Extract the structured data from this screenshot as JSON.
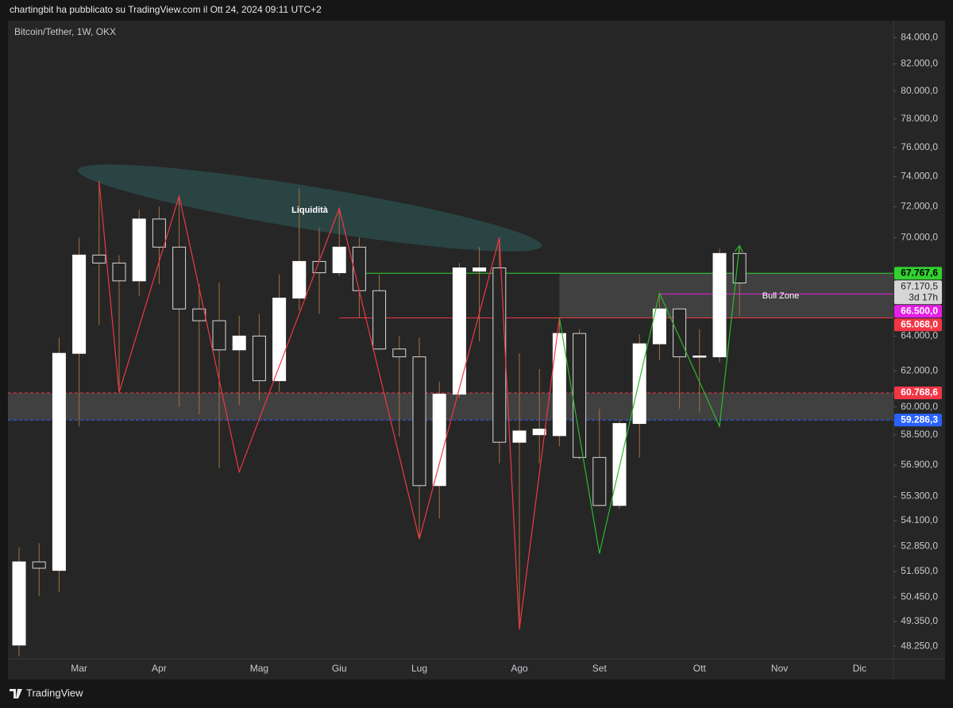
{
  "header": "chartingbit ha pubblicato su TradingView.com il Ott 24, 2024 09:11 UTC+2",
  "footer": "TradingView",
  "chart_data": {
    "type": "candlestick",
    "title": "Bitcoin/Tether, 1W, OKX",
    "categories": [
      null,
      null,
      null,
      "Mar",
      null,
      null,
      null,
      "Apr",
      null,
      null,
      null,
      null,
      "Mag",
      null,
      null,
      null,
      "Giu",
      null,
      null,
      null,
      "Lug",
      null,
      null,
      null,
      null,
      "Ago",
      null,
      null,
      null,
      "Set",
      null,
      null,
      null,
      null,
      "Ott",
      null,
      null,
      null,
      "Nov",
      null,
      null,
      null,
      "Dic"
    ],
    "open": [
      48300,
      52100,
      51700,
      63000,
      68900,
      68400,
      67300,
      71200,
      69400,
      65600,
      64900,
      63200,
      64000,
      61450,
      66250,
      68500,
      67800,
      69400,
      66700,
      63250,
      62800,
      55850,
      60700,
      67900,
      68100,
      58100,
      58500,
      58450,
      64150,
      57300,
      54850,
      59100,
      63550,
      65600,
      62800,
      62800,
      69000,
      null,
      null,
      null,
      null,
      null,
      null
    ],
    "high": [
      52800,
      53000,
      63900,
      70000,
      73700,
      68900,
      71800,
      72000,
      72700,
      67100,
      67200,
      65200,
      65300,
      67700,
      73200,
      70600,
      71900,
      70000,
      67700,
      64000,
      63900,
      61400,
      68400,
      69400,
      70000,
      63000,
      62100,
      65100,
      64400,
      59900,
      59300,
      64100,
      66550,
      65600,
      64400,
      69300,
      69500,
      null,
      null,
      null,
      null,
      null,
      null
    ],
    "low": [
      47800,
      50500,
      50700,
      58950,
      64650,
      60800,
      66400,
      67100,
      60000,
      59600,
      56750,
      60100,
      60350,
      60800,
      65500,
      65300,
      67600,
      65100,
      63200,
      58400,
      53200,
      54200,
      60500,
      63700,
      57000,
      49000,
      57000,
      57900,
      57200,
      54800,
      54700,
      57300,
      62600,
      59900,
      59700,
      62500,
      65200,
      null,
      null,
      null,
      null,
      null,
      null
    ],
    "close": [
      52100,
      51800,
      63000,
      68900,
      68400,
      67300,
      71200,
      69400,
      65600,
      64900,
      63200,
      64000,
      61450,
      66250,
      68500,
      67800,
      69400,
      66700,
      63250,
      62800,
      55850,
      60700,
      68100,
      68100,
      58100,
      58700,
      58800,
      64150,
      57300,
      54850,
      59100,
      63550,
      65600,
      62800,
      62850,
      69000,
      67170.5,
      null,
      null,
      null,
      null,
      null,
      null
    ],
    "bull_color": "#ffffff",
    "bear_color": "#262626",
    "outline_color": "#d8d8d8",
    "wick_color": "#a8703f",
    "log_scale": true,
    "ylim": [
      47700,
      85300
    ],
    "yticks": [
      {
        "value": 84000,
        "label": "84.000,0"
      },
      {
        "value": 82000,
        "label": "82.000,0"
      },
      {
        "value": 80000,
        "label": "80.000,0"
      },
      {
        "value": 78000,
        "label": "78.000,0"
      },
      {
        "value": 76000,
        "label": "76.000,0"
      },
      {
        "value": 74000,
        "label": "74.000,0"
      },
      {
        "value": 72000,
        "label": "72.000,0"
      },
      {
        "value": 70000,
        "label": "70.000,0"
      },
      {
        "value": 64000,
        "label": "64.000,0"
      },
      {
        "value": 62000,
        "label": "62.000,0"
      },
      {
        "value": 60000,
        "label": "60.000,0"
      },
      {
        "value": 58500,
        "label": "58.500,0"
      },
      {
        "value": 56900,
        "label": "56.900,0"
      },
      {
        "value": 55300,
        "label": "55.300,0"
      },
      {
        "value": 54100,
        "label": "54.100,0"
      },
      {
        "value": 52850,
        "label": "52.850,0"
      },
      {
        "value": 51650,
        "label": "51.650,0"
      },
      {
        "value": 50450,
        "label": "50.450,0"
      },
      {
        "value": 49350,
        "label": "49.350,0"
      },
      {
        "value": 48250,
        "label": "48.250,0"
      }
    ],
    "last_price_label": "67.170,5",
    "countdown": "3d 17h",
    "last_price_color": "#d6d6d6",
    "levels": [
      {
        "value": 67767.6,
        "label": "67.767,6",
        "color": "#31d12f",
        "text_color": "#000000",
        "from": 17,
        "style": "solid"
      },
      {
        "value": 66500,
        "label": "66.500,0",
        "color": "#e61ee6",
        "text_color": "#ffffff",
        "from": 32,
        "style": "solid"
      },
      {
        "value": 65068,
        "label": "65.068,0",
        "color": "#f23645",
        "text_color": "#ffffff",
        "from": 16,
        "style": "solid"
      },
      {
        "value": 60768.6,
        "label": "60.768,6",
        "color": "#f23645",
        "text_color": "#ffffff",
        "style": "dashed"
      },
      {
        "value": 59286.3,
        "label": "59.286,3",
        "color": "#2962ff",
        "text_color": "#ffffff",
        "style": "dashed"
      }
    ],
    "zones": [
      {
        "low": 65068,
        "high": 67767.6,
        "from": 27,
        "color": "#4a4a4a"
      },
      {
        "low": 59286.3,
        "high": 60768.6,
        "color": "#4a4a4a"
      }
    ],
    "zigzags": [
      {
        "color": "#f23645",
        "points": [
          [
            4,
            73700
          ],
          [
            5,
            60800
          ],
          [
            8,
            72700
          ],
          [
            11,
            56550
          ],
          [
            16,
            71900
          ],
          [
            20,
            53200
          ],
          [
            24,
            70000
          ],
          [
            25,
            49000
          ],
          [
            27,
            65068
          ]
        ]
      },
      {
        "color": "#2eb82e",
        "arrow": true,
        "points": [
          [
            27,
            65068
          ],
          [
            29,
            52500
          ],
          [
            32,
            66550
          ],
          [
            35,
            58950
          ],
          [
            36,
            69500
          ]
        ]
      }
    ],
    "annotations": [
      "Liquidità",
      "Bull Zone"
    ]
  }
}
